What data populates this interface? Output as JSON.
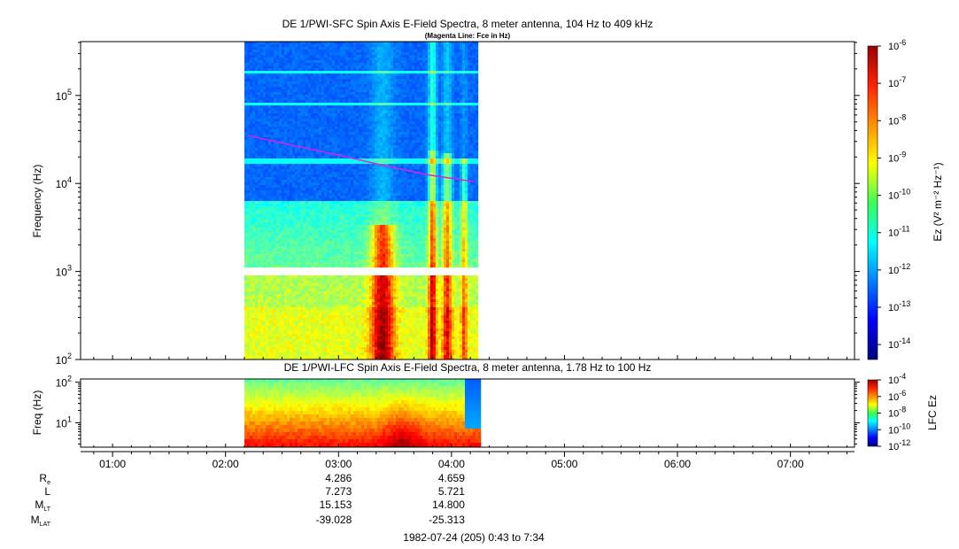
{
  "chart_data": [
    {
      "type": "heatmap",
      "title": "DE 1/PWI-SFC  Spin Axis E-Field Spectra, 8 meter antenna, 104 Hz to 409 kHz",
      "subtitle": "(Magenta Line: Fce in Hz)",
      "ylabel": "Frequency (Hz)",
      "yscale": "log",
      "ylim": [
        100,
        409000
      ],
      "y_ticks": [
        {
          "exp": 2,
          "label_base": "10",
          "label_exp": "2"
        },
        {
          "exp": 3,
          "label_base": "10",
          "label_exp": "3"
        },
        {
          "exp": 4,
          "label_base": "10",
          "label_exp": "4"
        },
        {
          "exp": 5,
          "label_base": "10",
          "label_exp": "5"
        }
      ],
      "x_hours": [
        0.717,
        7.567
      ],
      "data_interval_hours": [
        2.167,
        4.233
      ],
      "data_gap_hz": [
        930,
        1040
      ],
      "colorbar": {
        "label": "Ez (V² m⁻² Hz⁻¹)",
        "scale": "log",
        "range_exp": [
          -14.4,
          -6
        ],
        "ticks": [
          {
            "exp": -6,
            "label_base": "10",
            "label_exp": "-6"
          },
          {
            "exp": -7,
            "label_base": "10",
            "label_exp": "-7"
          },
          {
            "exp": -8,
            "label_base": "10",
            "label_exp": "-8"
          },
          {
            "exp": -9,
            "label_base": "10",
            "label_exp": "-9"
          },
          {
            "exp": -10,
            "label_base": "10",
            "label_exp": "-10"
          },
          {
            "exp": -11,
            "label_base": "10",
            "label_exp": "-11"
          },
          {
            "exp": -12,
            "label_base": "10",
            "label_exp": "-12"
          },
          {
            "exp": -13,
            "label_base": "10",
            "label_exp": "-13"
          },
          {
            "exp": -14,
            "label_base": "10",
            "label_exp": "-14"
          }
        ]
      },
      "fce_line": {
        "color": "#e020e0",
        "points": [
          [
            2.2,
            35000
          ],
          [
            2.6,
            27000
          ],
          [
            3.0,
            21000
          ],
          [
            3.4,
            16000
          ],
          [
            3.8,
            12500
          ],
          [
            4.2,
            10500
          ]
        ]
      }
    },
    {
      "type": "heatmap",
      "title": "DE 1/PWI-LFC  Spin Axis E-Field Spectra, 8 meter antenna, 1.78 Hz to 100 Hz",
      "ylabel": "Freq (Hz)",
      "yscale": "log",
      "ylim": [
        2.5,
        120
      ],
      "y_ticks": [
        {
          "exp": 1,
          "label_base": "10",
          "label_exp": "1"
        },
        {
          "exp": 2,
          "label_base": "10",
          "label_exp": "2"
        }
      ],
      "x_hours": [
        0.717,
        7.567
      ],
      "data_interval_hours": [
        2.167,
        4.233
      ],
      "colorbar": {
        "label": "LFC Ez",
        "scale": "log",
        "range_exp": [
          -12,
          -4
        ],
        "ticks": [
          {
            "exp": -4,
            "label_base": "10",
            "label_exp": "-4"
          },
          {
            "exp": -6,
            "label_base": "10",
            "label_exp": "-6"
          },
          {
            "exp": -8,
            "label_base": "10",
            "label_exp": "-8"
          },
          {
            "exp": -10,
            "label_base": "10",
            "label_exp": "-10"
          },
          {
            "exp": -12,
            "label_base": "10",
            "label_exp": "-12"
          }
        ]
      }
    }
  ],
  "time_axis": {
    "ticks": [
      {
        "hour": 1,
        "label": "01:00"
      },
      {
        "hour": 2,
        "label": "02:00"
      },
      {
        "hour": 3,
        "label": "03:00"
      },
      {
        "hour": 4,
        "label": "04:00"
      },
      {
        "hour": 5,
        "label": "05:00"
      },
      {
        "hour": 6,
        "label": "06:00"
      },
      {
        "hour": 7,
        "label": "07:00"
      }
    ],
    "ephemeris": [
      {
        "name": "R",
        "sub": "e",
        "values": [
          {
            "hour": 3,
            "text": "4.286"
          },
          {
            "hour": 4,
            "text": "4.659"
          }
        ]
      },
      {
        "name": "L",
        "sub": "",
        "values": [
          {
            "hour": 3,
            "text": "7.273"
          },
          {
            "hour": 4,
            "text": "5.721"
          }
        ]
      },
      {
        "name": "M",
        "sub": "LT",
        "values": [
          {
            "hour": 3,
            "text": "15.153"
          },
          {
            "hour": 4,
            "text": "14.800"
          }
        ]
      },
      {
        "name": "M",
        "sub": "LAT",
        "values": [
          {
            "hour": 3,
            "text": "-39.028"
          },
          {
            "hour": 4,
            "text": "-25.313"
          }
        ]
      }
    ],
    "caption": "1982-07-24 (205) 0:43 to 7:34"
  }
}
